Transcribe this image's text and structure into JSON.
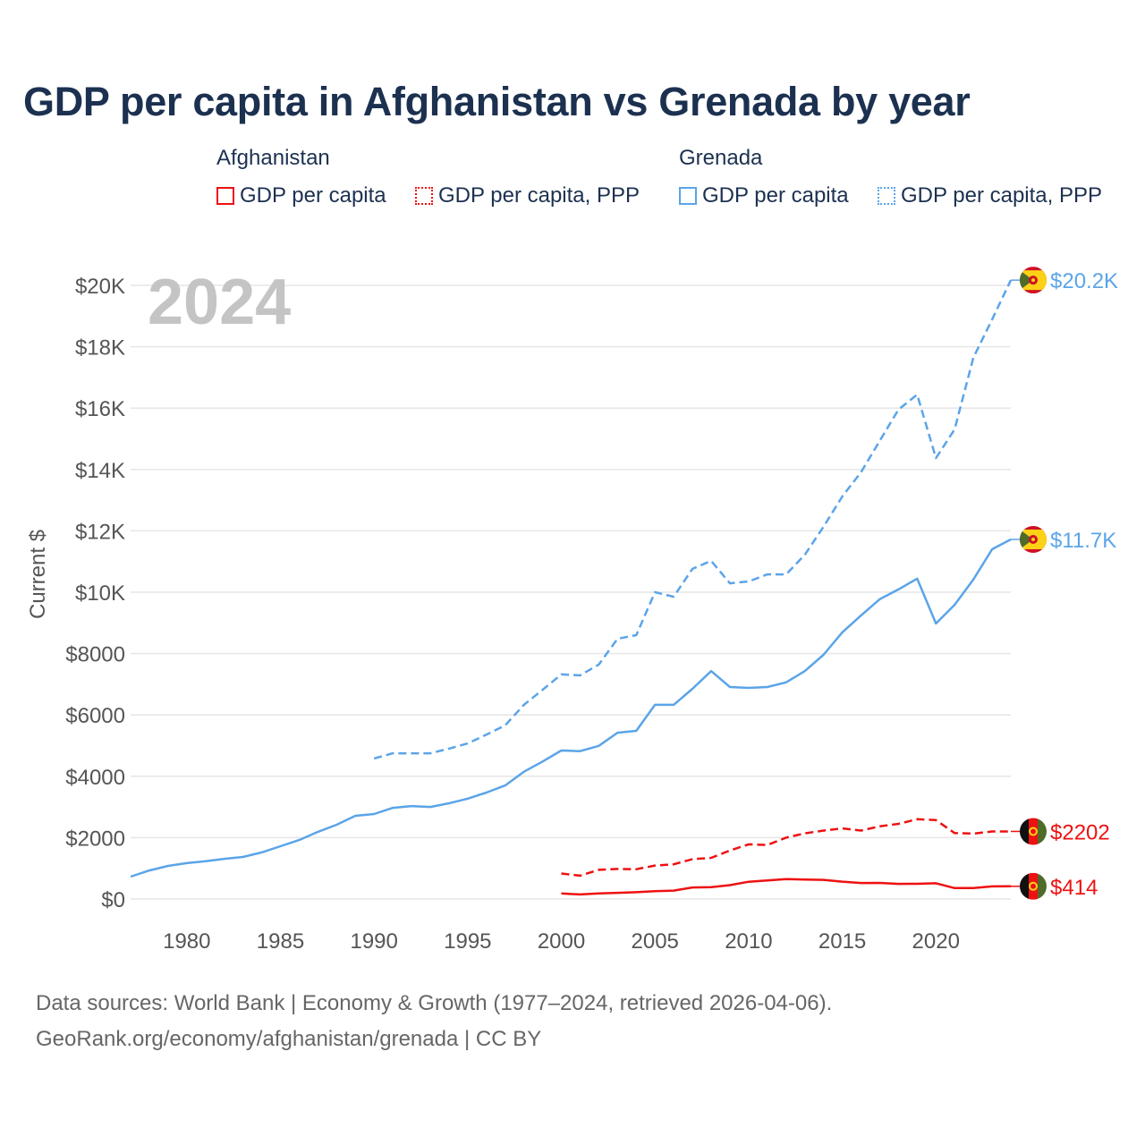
{
  "title": "GDP per capita in Afghanistan vs Grenada by year",
  "legend": {
    "groups": [
      {
        "name": "Afghanistan",
        "items": [
          "GDP per capita",
          "GDP per capita, PPP"
        ],
        "color": "#ee1111"
      },
      {
        "name": "Grenada",
        "items": [
          "GDP per capita",
          "GDP per capita, PPP"
        ],
        "color": "#5ba4e8"
      }
    ]
  },
  "footer": {
    "line1": "Data sources: World Bank | Economy & Growth (1977–2024, retrieved 2026-04-06).",
    "line2": "GeoRank.org/economy/afghanistan/grenada | CC BY"
  },
  "chart_data": {
    "type": "line",
    "title": "GDP per capita in Afghanistan vs Grenada by year",
    "year_overlay": "2024",
    "xlabel": "",
    "ylabel": "Current $",
    "xlim": [
      1977,
      2024
    ],
    "ylim": [
      0,
      20000
    ],
    "x_ticks": [
      1980,
      1985,
      1990,
      1995,
      2000,
      2005,
      2010,
      2015,
      2020
    ],
    "y_ticks": [
      0,
      2000,
      4000,
      6000,
      8000,
      10000,
      12000,
      14000,
      16000,
      18000,
      20000
    ],
    "y_tick_labels": [
      "$0",
      "$2000",
      "$4000",
      "$6000",
      "$8000",
      "$10K",
      "$12K",
      "$14K",
      "$16K",
      "$18K",
      "$20K"
    ],
    "grid": true,
    "series": [
      {
        "name": "Grenada GDP per capita, PPP",
        "country": "Grenada",
        "color": "#5ba4e8",
        "dashed": true,
        "end_label": "$20.2K",
        "start": 1990,
        "values": [
          4580,
          4750,
          4750,
          4750,
          4900,
          5070,
          5360,
          5660,
          6330,
          6820,
          7320,
          7290,
          7640,
          8480,
          8600,
          10000,
          9850,
          10760,
          11020,
          10290,
          10350,
          10580,
          10580,
          11220,
          12130,
          13120,
          13910,
          14930,
          15950,
          16440,
          14370,
          15310,
          17640,
          18890,
          20170
        ]
      },
      {
        "name": "Grenada GDP per capita",
        "country": "Grenada",
        "color": "#5ba4e8",
        "dashed": false,
        "end_label": "$11.7K",
        "start": 1977,
        "values": [
          730,
          930,
          1080,
          1170,
          1230,
          1310,
          1370,
          1520,
          1720,
          1920,
          2190,
          2420,
          2710,
          2770,
          2970,
          3030,
          3000,
          3120,
          3270,
          3470,
          3700,
          4150,
          4480,
          4840,
          4820,
          4990,
          5420,
          5480,
          6330,
          6330,
          6850,
          7430,
          6910,
          6880,
          6910,
          7060,
          7430,
          7960,
          8690,
          9240,
          9770,
          10090,
          10440,
          8980,
          9590,
          10410,
          11400,
          11720
        ]
      },
      {
        "name": "Afghanistan GDP per capita, PPP",
        "country": "Afghanistan",
        "color": "#ee1111",
        "dashed": true,
        "end_label": "$2202",
        "start": 2000,
        "values": [
          830,
          760,
          950,
          980,
          970,
          1090,
          1130,
          1300,
          1340,
          1580,
          1780,
          1760,
          2000,
          2140,
          2230,
          2300,
          2230,
          2370,
          2450,
          2600,
          2570,
          2150,
          2130,
          2200,
          2202
        ]
      },
      {
        "name": "Afghanistan GDP per capita",
        "country": "Afghanistan",
        "color": "#ee1111",
        "dashed": false,
        "end_label": "$414",
        "start": 2000,
        "values": [
          180,
          150,
          183,
          200,
          221,
          255,
          274,
          375,
          387,
          453,
          562,
          606,
          651,
          637,
          623,
          566,
          522,
          526,
          492,
          497,
          512,
          356,
          357,
          410,
          414
        ]
      }
    ]
  }
}
